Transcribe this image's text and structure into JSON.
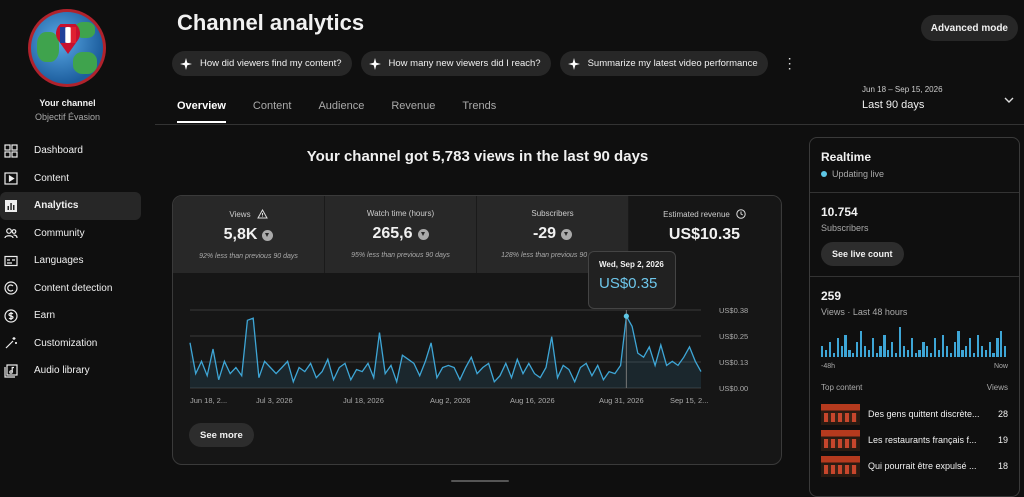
{
  "sidebar": {
    "channel_name": "Your channel",
    "channel_handle": "Objectif Évasion",
    "items": [
      {
        "label": "Dashboard",
        "icon": "dashboard-icon"
      },
      {
        "label": "Content",
        "icon": "content-icon"
      },
      {
        "label": "Analytics",
        "icon": "analytics-icon",
        "active": true
      },
      {
        "label": "Community",
        "icon": "community-icon"
      },
      {
        "label": "Languages",
        "icon": "languages-icon"
      },
      {
        "label": "Content detection",
        "icon": "copyright-icon"
      },
      {
        "label": "Earn",
        "icon": "dollar-icon"
      },
      {
        "label": "Customization",
        "icon": "magic-wand-icon"
      },
      {
        "label": "Audio library",
        "icon": "audio-library-icon"
      }
    ]
  },
  "header": {
    "title": "Channel analytics",
    "advanced_mode": "Advanced mode",
    "chips": [
      "How did viewers find my content?",
      "How many new viewers did I reach?",
      "Summarize my latest video performance"
    ],
    "more": "⋮",
    "date_range": "Jun 18 – Sep 15, 2026",
    "date_label": "Last 90 days"
  },
  "tabs": [
    "Overview",
    "Content",
    "Audience",
    "Revenue",
    "Trends"
  ],
  "headline": "Your channel got 5,783 views in the last 90 days",
  "metrics": [
    {
      "label": "Views",
      "value": "5,8K",
      "sub": "92% less than previous 90 days"
    },
    {
      "label": "Watch time (hours)",
      "value": "265,6",
      "sub": "95% less than previous 90 days"
    },
    {
      "label": "Subscribers",
      "value": "-29",
      "sub": "128% less than previous 90 days"
    },
    {
      "label": "Estimated revenue",
      "value": "US$10.35",
      "sub": ""
    }
  ],
  "tooltip": {
    "date": "Wed, Sep 2, 2026",
    "value": "US$0.35"
  },
  "see_more": "See more",
  "chart_data": {
    "type": "line",
    "title": "",
    "ylabel": "",
    "y_ticks": [
      "US$0.38",
      "US$0.25",
      "US$0.13",
      "US$0.00"
    ],
    "x_ticks": [
      "Jun 18, 2...",
      "Jul 3, 2026",
      "Jul 18, 2026",
      "Aug 2, 2026",
      "Aug 16, 2026",
      "Aug 31, 2026",
      "Sep 15, 2..."
    ],
    "ylim": [
      0,
      0.38
    ],
    "highlight_index": 76,
    "series": [
      {
        "values": [
          0.22,
          0.07,
          0.13,
          0.06,
          0.19,
          0.04,
          0.13,
          0.07,
          0.1,
          0.06,
          0.33,
          0.34,
          0.05,
          0.13,
          0.1,
          0.07,
          0.1,
          0.13,
          0.03,
          0.1,
          0.08,
          0.12,
          0.05,
          0.08,
          0.14,
          0.04,
          0.1,
          0.12,
          0.04,
          0.09,
          0.08,
          0.12,
          0.05,
          0.27,
          0.07,
          0.11,
          0.03,
          0.16,
          0.14,
          0.12,
          0.06,
          0.13,
          0.22,
          0.05,
          0.1,
          0.11,
          0.1,
          0.04,
          0.1,
          0.15,
          0.07,
          0.1,
          0.12,
          0.03,
          0.06,
          0.12,
          0.05,
          0.14,
          0.07,
          0.12,
          0.07,
          0.05,
          0.1,
          0.25,
          0.05,
          0.11,
          0.09,
          0.03,
          0.1,
          0.12,
          0.06,
          0.11,
          0.04,
          0.08,
          0.07,
          0.11,
          0.35,
          0.3,
          0.17,
          0.15,
          0.2,
          0.11,
          0.21,
          0.11,
          0.13,
          0.11,
          0.15,
          0.2,
          0.13,
          0.08
        ]
      }
    ]
  },
  "realtime": {
    "title": "Realtime",
    "status": "Updating live",
    "subs_count": "10.754",
    "subs_label": "Subscribers",
    "button": "See live count",
    "views_count": "259",
    "views_label": "Views · Last 48 hours",
    "axis_start": "-48h",
    "axis_end": "Now",
    "bars": [
      3,
      2,
      4,
      1,
      5,
      3,
      6,
      2,
      1,
      4,
      7,
      3,
      2,
      5,
      1,
      3,
      6,
      2,
      4,
      1,
      8,
      3,
      2,
      5,
      1,
      2,
      4,
      3,
      1,
      5,
      2,
      6,
      3,
      1,
      4,
      7,
      2,
      3,
      5,
      1,
      6,
      3,
      2,
      4,
      1,
      5,
      7,
      3
    ],
    "top_content_label": "Top content",
    "views_col": "Views",
    "top_content": [
      {
        "title": "Des gens quittent discrète...",
        "views": "28"
      },
      {
        "title": "Les restaurants français f...",
        "views": "19"
      },
      {
        "title": "Qui pourrait être expulsé ...",
        "views": "18"
      }
    ]
  }
}
